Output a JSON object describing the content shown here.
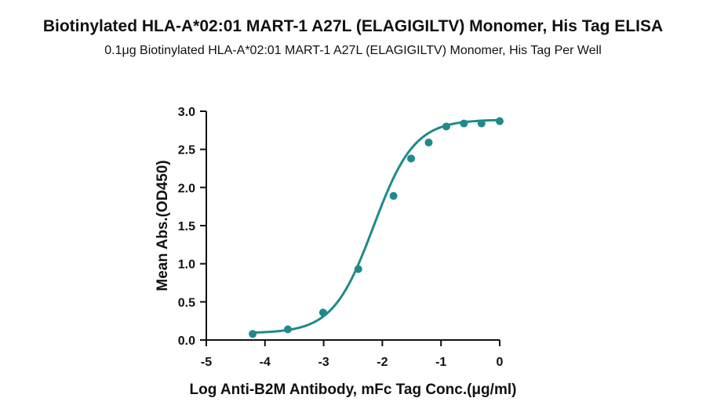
{
  "header": {
    "title": "Biotinylated HLA-A*02:01 MART-1 A27L (ELAGIGILTV) Monomer, His Tag ELISA",
    "subtitle": "0.1μg Biotinylated HLA-A*02:01 MART-1 A27L (ELAGIGILTV) Monomer, His Tag Per Well"
  },
  "chart_data": {
    "type": "scatter",
    "title": "Biotinylated HLA-A*02:01 MART-1 A27L (ELAGIGILTV) Monomer, His Tag ELISA",
    "subtitle": "0.1μg Biotinylated HLA-A*02:01 MART-1 A27L (ELAGIGILTV) Monomer, His Tag Per Well",
    "xlabel": "Log Anti-B2M Antibody, mFc Tag Conc.(μg/ml)",
    "ylabel": "Mean Abs.(OD450)",
    "xlim": [
      -5,
      0
    ],
    "ylim": [
      0,
      3.0
    ],
    "xticks": [
      "-5",
      "-4",
      "-3",
      "-2",
      "-1",
      "0"
    ],
    "yticks": [
      "0.0",
      "0.5",
      "1.0",
      "1.5",
      "2.0",
      "2.5",
      "3.0"
    ],
    "grid": false,
    "legend": "none",
    "color": "#1f8a8a",
    "series": [
      {
        "x": [
          -4.21,
          -3.61,
          -3.01,
          -2.41,
          -1.81,
          -1.51,
          -1.21,
          -0.91,
          -0.61,
          -0.31,
          0.0
        ],
        "y": [
          0.08,
          0.14,
          0.36,
          0.93,
          1.89,
          2.38,
          2.59,
          2.8,
          2.84,
          2.84,
          2.87
        ]
      }
    ],
    "fit": {
      "model": "4PL",
      "bottom": 0.09,
      "top": 2.89,
      "logEC50": -2.15,
      "hill": 1.25
    }
  }
}
